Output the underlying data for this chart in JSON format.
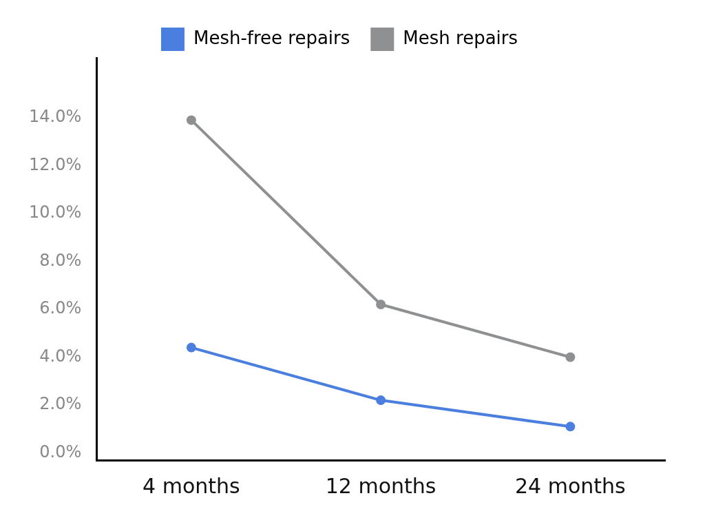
{
  "chart_data": {
    "type": "line",
    "categories": [
      "4 months",
      "12 months",
      "24 months"
    ],
    "series": [
      {
        "name": "Mesh-free repairs",
        "color": "#4a7fe0",
        "values": [
          4.4,
          2.2,
          1.1
        ]
      },
      {
        "name": "Mesh repairs",
        "color": "#8e9092",
        "values": [
          13.9,
          6.2,
          4.0
        ]
      }
    ],
    "ylim": [
      -0.3,
      16.5
    ],
    "yticks": [
      {
        "value": 0,
        "label": "0.0%"
      },
      {
        "value": 2,
        "label": "2.0%"
      },
      {
        "value": 4,
        "label": "4.0%"
      },
      {
        "value": 6,
        "label": "6.0%"
      },
      {
        "value": 8,
        "label": "8.0%"
      },
      {
        "value": 10,
        "label": "10.0%"
      },
      {
        "value": 12,
        "label": "12.0%"
      },
      {
        "value": 14,
        "label": "14.0%"
      }
    ],
    "grid": false,
    "legend": "top",
    "marker": "circle",
    "line_style": "solid"
  }
}
